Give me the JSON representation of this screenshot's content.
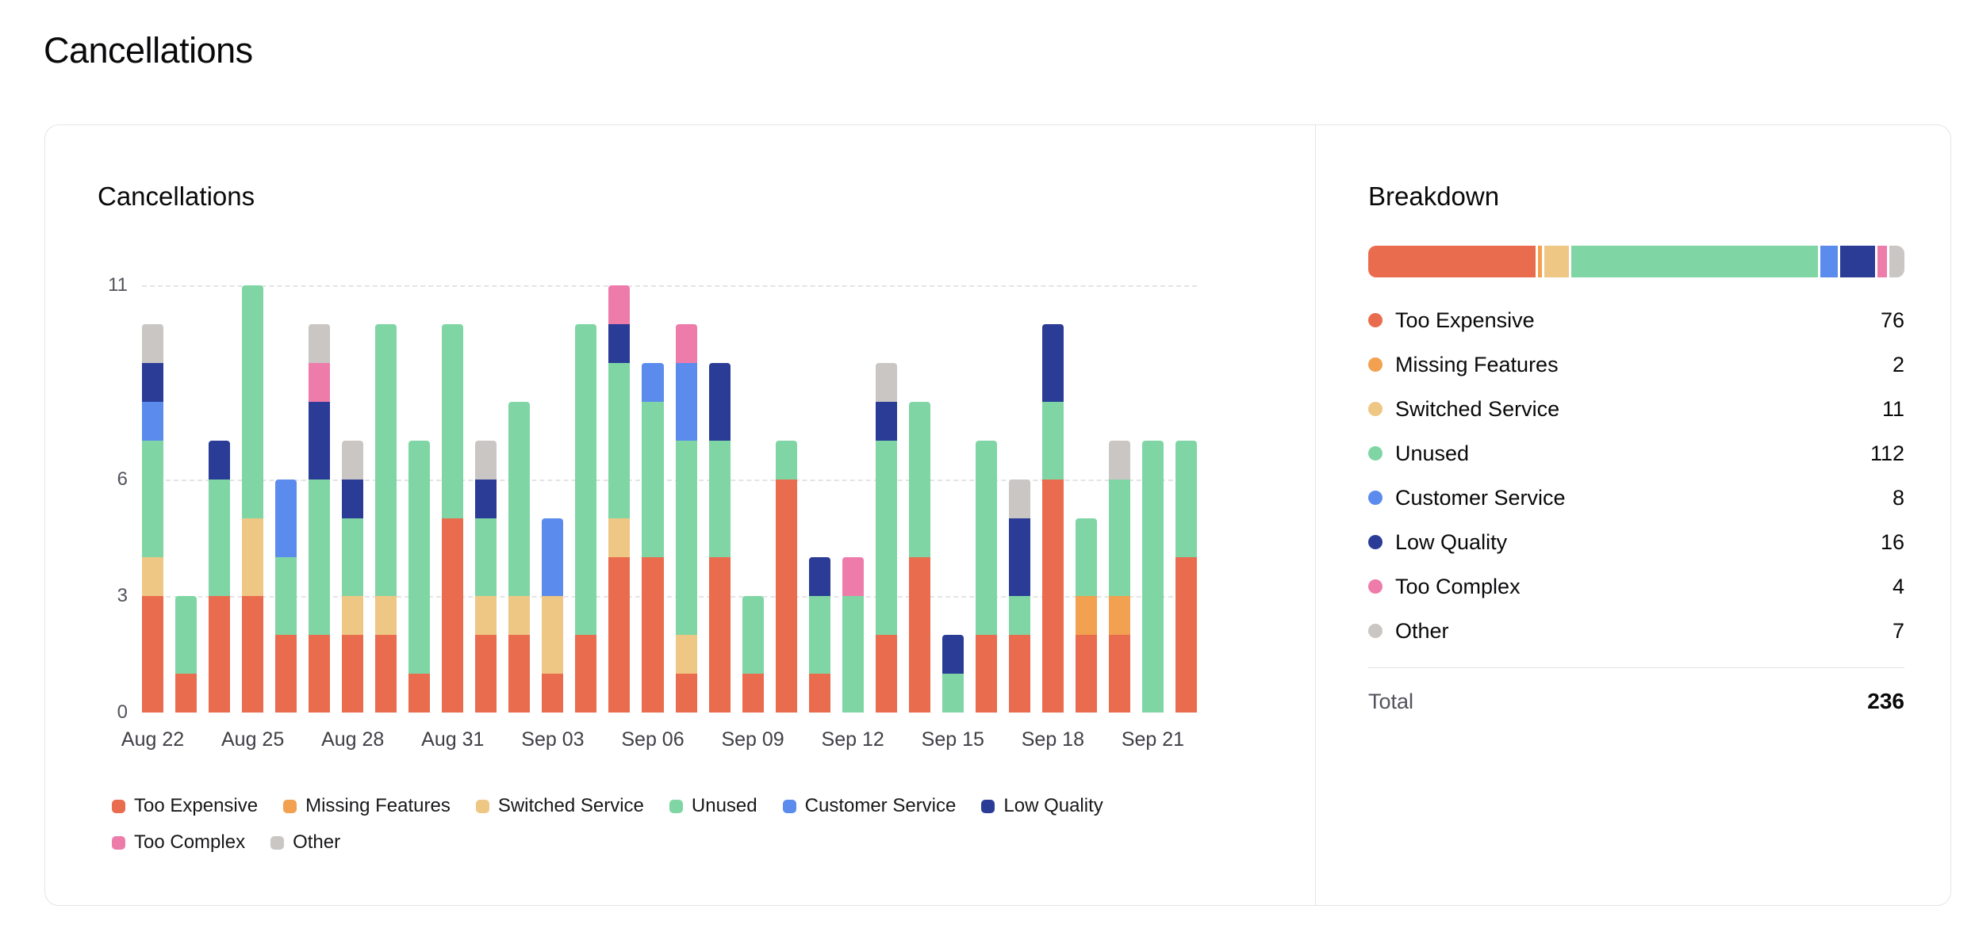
{
  "page": {
    "title": "Cancellations"
  },
  "chart_data": {
    "type": "bar",
    "stacked": true,
    "title": "Cancellations",
    "xlabel": "",
    "ylabel": "",
    "ylim": [
      0,
      11
    ],
    "y_ticks": [
      0,
      3,
      6,
      11
    ],
    "grid": "dashed-horizontal",
    "legend_position": "bottom",
    "x_tick_every": 3,
    "x_tick_labels": [
      "Aug 22",
      "Aug 25",
      "Aug 28",
      "Aug 31",
      "Sep 03",
      "Sep 06",
      "Sep 09",
      "Sep 12",
      "Sep 15",
      "Sep 18",
      "Sep 21"
    ],
    "categories": [
      "Aug 22",
      "Aug 23",
      "Aug 24",
      "Aug 25",
      "Aug 26",
      "Aug 27",
      "Aug 28",
      "Aug 29",
      "Aug 30",
      "Aug 31",
      "Sep 01",
      "Sep 02",
      "Sep 03",
      "Sep 04",
      "Sep 05",
      "Sep 06",
      "Sep 07",
      "Sep 08",
      "Sep 09",
      "Sep 10",
      "Sep 11",
      "Sep 12",
      "Sep 13",
      "Sep 14",
      "Sep 15",
      "Sep 16",
      "Sep 17",
      "Sep 18",
      "Sep 19",
      "Sep 20",
      "Sep 21",
      "Sep 22"
    ],
    "series": [
      {
        "name": "Too Expensive",
        "color": "#ea6c4f",
        "values": [
          3,
          1,
          3,
          3,
          2,
          2,
          2,
          2,
          1,
          5,
          2,
          2,
          1,
          2,
          4,
          4,
          1,
          4,
          1,
          6,
          1,
          0,
          2,
          4,
          0,
          2,
          2,
          6,
          2,
          2,
          0,
          4
        ]
      },
      {
        "name": "Missing Features",
        "color": "#f1a14f",
        "values": [
          0,
          0,
          0,
          0,
          0,
          0,
          0,
          0,
          0,
          0,
          0,
          0,
          0,
          0,
          0,
          0,
          0,
          0,
          0,
          0,
          0,
          0,
          0,
          0,
          0,
          0,
          0,
          0,
          1,
          1,
          0,
          0
        ]
      },
      {
        "name": "Switched Service",
        "color": "#eec784",
        "values": [
          1,
          0,
          0,
          2,
          0,
          0,
          1,
          1,
          0,
          0,
          1,
          1,
          2,
          0,
          1,
          0,
          1,
          0,
          0,
          0,
          0,
          0,
          0,
          0,
          0,
          0,
          0,
          0,
          0,
          0,
          0,
          0
        ]
      },
      {
        "name": "Unused",
        "color": "#7fd6a4",
        "values": [
          3,
          2,
          3,
          6,
          2,
          4,
          2,
          7,
          6,
          5,
          2,
          5,
          0,
          8,
          4,
          4,
          5,
          3,
          2,
          1,
          2,
          3,
          5,
          4,
          1,
          5,
          1,
          2,
          2,
          3,
          7,
          3
        ]
      },
      {
        "name": "Customer Service",
        "color": "#5c8bee",
        "values": [
          1,
          0,
          0,
          0,
          2,
          0,
          0,
          0,
          0,
          0,
          0,
          0,
          2,
          0,
          0,
          1,
          2,
          0,
          0,
          0,
          0,
          0,
          0,
          0,
          0,
          0,
          0,
          0,
          0,
          0,
          0,
          0
        ]
      },
      {
        "name": "Low Quality",
        "color": "#2b3c97",
        "values": [
          1,
          0,
          1,
          0,
          0,
          2,
          1,
          0,
          0,
          0,
          1,
          0,
          0,
          0,
          1,
          0,
          0,
          2,
          0,
          0,
          1,
          0,
          1,
          0,
          1,
          0,
          2,
          2,
          0,
          0,
          0,
          0
        ]
      },
      {
        "name": "Too Complex",
        "color": "#ee7cab",
        "values": [
          0,
          0,
          0,
          0,
          0,
          1,
          0,
          0,
          0,
          0,
          0,
          0,
          0,
          0,
          1,
          0,
          1,
          0,
          0,
          0,
          0,
          1,
          0,
          0,
          0,
          0,
          0,
          0,
          0,
          0,
          0,
          0
        ]
      },
      {
        "name": "Other",
        "color": "#c9c6c3",
        "values": [
          1,
          0,
          0,
          0,
          0,
          1,
          1,
          0,
          0,
          0,
          1,
          0,
          0,
          0,
          0,
          0,
          0,
          0,
          0,
          0,
          0,
          0,
          1,
          0,
          0,
          0,
          1,
          0,
          0,
          1,
          0,
          0
        ]
      }
    ]
  },
  "breakdown": {
    "title": "Breakdown",
    "rows": [
      {
        "label": "Too Expensive",
        "value": 76,
        "color": "#ea6c4f"
      },
      {
        "label": "Missing Features",
        "value": 2,
        "color": "#f1a14f"
      },
      {
        "label": "Switched Service",
        "value": 11,
        "color": "#eec784"
      },
      {
        "label": "Unused",
        "value": 112,
        "color": "#7fd6a4"
      },
      {
        "label": "Customer Service",
        "value": 8,
        "color": "#5c8bee"
      },
      {
        "label": "Low Quality",
        "value": 16,
        "color": "#2b3c97"
      },
      {
        "label": "Too Complex",
        "value": 4,
        "color": "#ee7cab"
      },
      {
        "label": "Other",
        "value": 7,
        "color": "#c9c6c3"
      }
    ],
    "total_label": "Total",
    "total_value": 236
  }
}
